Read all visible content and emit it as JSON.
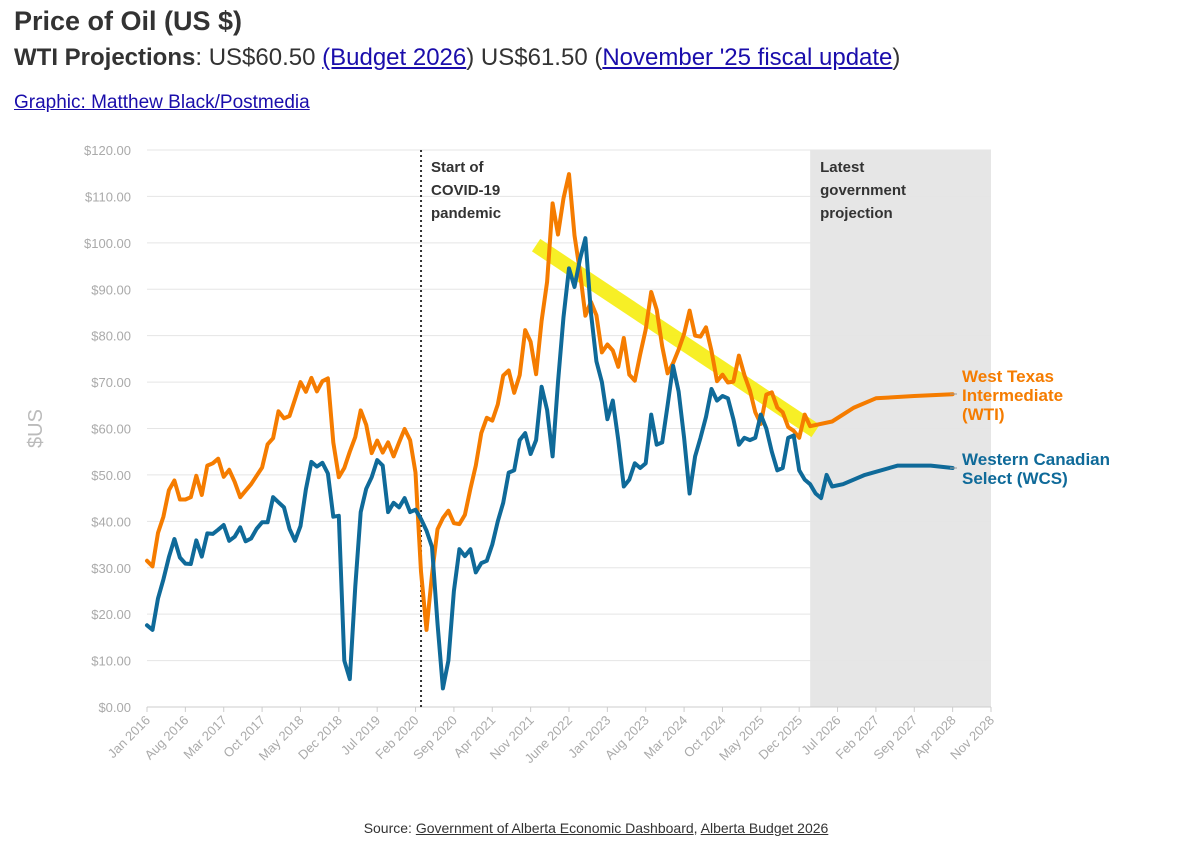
{
  "header": {
    "title": "Price of Oil (US $)",
    "subtitle_bold": "WTI Projections",
    "subtitle_sep": ": ",
    "wti_budget_value": "US$60.50 ",
    "budget_link": "(Budget 2026",
    "close_paren": ")",
    "fiscal_value": " US$61.50 (",
    "fiscal_link": "November '25 fiscal update",
    "close_paren2": ")",
    "credit_link": "Graphic: Matthew Black/Postmedia"
  },
  "source": {
    "prefix": "Source: ",
    "link1": "Government of Alberta Economic Dashboard",
    "sep": ", ",
    "link2": "Alberta Budget 2026"
  },
  "colors": {
    "wti": "#f57c00",
    "wcs": "#0f6a99",
    "highlight": "#f7ef1b",
    "projection_shade": "#e6e6e6",
    "grid": "#e5e5e5",
    "axis_text": "#aaaaaa"
  },
  "chart_data": {
    "type": "line",
    "ylabel": "$US",
    "xlabel": "",
    "ylim": [
      0,
      120
    ],
    "y_ticks": [
      "$0.00",
      "$10.00",
      "$20.00",
      "$30.00",
      "$40.00",
      "$50.00",
      "$60.00",
      "$70.00",
      "$80.00",
      "$90.00",
      "$100.00",
      "$110.00",
      "$120.00"
    ],
    "x_range": [
      "2016-01",
      "2028-11"
    ],
    "x_ticks": [
      "Jan 2016",
      "Aug 2016",
      "Mar 2017",
      "Oct 2017",
      "May 2018",
      "Dec 2018",
      "Jul 2019",
      "Feb 2020",
      "Sep 2020",
      "Apr 2021",
      "Nov 2021",
      "June 2022",
      "Jan 2023",
      "Aug 2023",
      "Mar 2024",
      "Oct 2024",
      "May 2025",
      "Dec 2025",
      "Jul 2026",
      "Feb 2027",
      "Sep 2027",
      "Apr 2028",
      "Nov 2028"
    ],
    "grid": true,
    "annotations": [
      {
        "text": [
          "Start of",
          "COVID-19",
          "pandemic"
        ],
        "x": "2020-03"
      },
      {
        "text": [
          "Latest",
          "government",
          "projection"
        ],
        "x": "2026-02"
      }
    ],
    "projection_region": [
      "2026-02",
      "2028-11"
    ],
    "series": [
      {
        "name": "West Texas Intermediate (WTI)",
        "label_lines": [
          "West Texas",
          "Intermediate",
          "(WTI)"
        ],
        "points": [
          [
            "2016-01",
            31.5
          ],
          [
            "2016-02",
            30.3
          ],
          [
            "2016-03",
            37.5
          ],
          [
            "2016-04",
            41
          ],
          [
            "2016-05",
            46.7
          ],
          [
            "2016-06",
            48.8
          ],
          [
            "2016-07",
            44.7
          ],
          [
            "2016-08",
            44.7
          ],
          [
            "2016-09",
            45.2
          ],
          [
            "2016-10",
            49.8
          ],
          [
            "2016-11",
            45.7
          ],
          [
            "2016-12",
            52
          ],
          [
            "2017-01",
            52.5
          ],
          [
            "2017-02",
            53.5
          ],
          [
            "2017-03",
            49.6
          ],
          [
            "2017-04",
            51.1
          ],
          [
            "2017-05",
            48.5
          ],
          [
            "2017-06",
            45.2
          ],
          [
            "2017-07",
            46.6
          ],
          [
            "2017-08",
            48
          ],
          [
            "2017-09",
            49.8
          ],
          [
            "2017-10",
            51.6
          ],
          [
            "2017-11",
            56.6
          ],
          [
            "2017-12",
            57.9
          ],
          [
            "2018-01",
            63.7
          ],
          [
            "2018-02",
            62.2
          ],
          [
            "2018-03",
            62.7
          ],
          [
            "2018-04",
            66.3
          ],
          [
            "2018-05",
            70
          ],
          [
            "2018-06",
            67.9
          ],
          [
            "2018-07",
            70.9
          ],
          [
            "2018-08",
            68
          ],
          [
            "2018-09",
            70.2
          ],
          [
            "2018-10",
            70.8
          ],
          [
            "2018-11",
            57
          ],
          [
            "2018-12",
            49.5
          ],
          [
            "2019-01",
            51.5
          ],
          [
            "2019-02",
            55
          ],
          [
            "2019-03",
            58.2
          ],
          [
            "2019-04",
            63.9
          ],
          [
            "2019-05",
            60.8
          ],
          [
            "2019-06",
            54.7
          ],
          [
            "2019-07",
            57.4
          ],
          [
            "2019-08",
            54.8
          ],
          [
            "2019-09",
            57
          ],
          [
            "2019-10",
            54
          ],
          [
            "2019-11",
            57
          ],
          [
            "2019-12",
            59.9
          ],
          [
            "2020-01",
            57.5
          ],
          [
            "2020-02",
            50.5
          ],
          [
            "2020-03",
            29.2
          ],
          [
            "2020-04",
            16.6
          ],
          [
            "2020-05",
            28.5
          ],
          [
            "2020-06",
            38.3
          ],
          [
            "2020-07",
            40.7
          ],
          [
            "2020-08",
            42.3
          ],
          [
            "2020-09",
            39.6
          ],
          [
            "2020-10",
            39.4
          ],
          [
            "2020-11",
            41.4
          ],
          [
            "2020-12",
            47
          ],
          [
            "2021-01",
            52
          ],
          [
            "2021-02",
            59
          ],
          [
            "2021-03",
            62.3
          ],
          [
            "2021-04",
            61.7
          ],
          [
            "2021-05",
            65.2
          ],
          [
            "2021-06",
            71.4
          ],
          [
            "2021-07",
            72.5
          ],
          [
            "2021-08",
            67.7
          ],
          [
            "2021-09",
            71.5
          ],
          [
            "2021-10",
            81.2
          ],
          [
            "2021-11",
            78.7
          ],
          [
            "2021-12",
            71.7
          ],
          [
            "2022-01",
            83.2
          ],
          [
            "2022-02",
            91.6
          ],
          [
            "2022-03",
            108.5
          ],
          [
            "2022-04",
            101.8
          ],
          [
            "2022-05",
            109.6
          ],
          [
            "2022-06",
            114.8
          ],
          [
            "2022-07",
            101.6
          ],
          [
            "2022-08",
            93.7
          ],
          [
            "2022-09",
            84.3
          ],
          [
            "2022-10",
            87.3
          ],
          [
            "2022-11",
            84.4
          ],
          [
            "2022-12",
            76.4
          ],
          [
            "2023-01",
            78.1
          ],
          [
            "2023-02",
            76.8
          ],
          [
            "2023-03",
            73.3
          ],
          [
            "2023-04",
            79.5
          ],
          [
            "2023-05",
            71.6
          ],
          [
            "2023-06",
            70.3
          ],
          [
            "2023-07",
            76
          ],
          [
            "2023-08",
            81.3
          ],
          [
            "2023-09",
            89.4
          ],
          [
            "2023-10",
            85.6
          ],
          [
            "2023-11",
            77.7
          ],
          [
            "2023-12",
            71.9
          ],
          [
            "2024-01",
            74.1
          ],
          [
            "2024-02",
            77
          ],
          [
            "2024-03",
            80.4
          ],
          [
            "2024-04",
            85.4
          ],
          [
            "2024-05",
            80
          ],
          [
            "2024-06",
            79.8
          ],
          [
            "2024-07",
            81.8
          ],
          [
            "2024-08",
            76.7
          ],
          [
            "2024-09",
            70.2
          ],
          [
            "2024-10",
            71.6
          ],
          [
            "2024-11",
            69.9
          ],
          [
            "2024-12",
            70.1
          ],
          [
            "2025-01",
            75.7
          ],
          [
            "2025-02",
            71.5
          ],
          [
            "2025-03",
            68.2
          ],
          [
            "2025-04",
            63.5
          ],
          [
            "2025-05",
            61
          ],
          [
            "2025-06",
            67.3
          ],
          [
            "2025-07",
            67.8
          ],
          [
            "2025-08",
            64.5
          ],
          [
            "2025-09",
            63.5
          ],
          [
            "2025-10",
            60.3
          ],
          [
            "2025-11",
            59.5
          ],
          [
            "2025-12",
            58
          ],
          [
            "2026-01",
            63
          ],
          [
            "2026-02",
            60.5
          ],
          [
            "2026-06",
            61.5
          ],
          [
            "2026-10",
            64.5
          ],
          [
            "2027-02",
            66.5
          ],
          [
            "2027-09",
            67
          ],
          [
            "2028-04",
            67.4
          ]
        ]
      },
      {
        "name": "Western Canadian Select (WCS)",
        "label_lines": [
          "Western Canadian",
          "Select (WCS)"
        ],
        "points": [
          [
            "2016-01",
            17.6
          ],
          [
            "2016-02",
            16.6
          ],
          [
            "2016-03",
            23.4
          ],
          [
            "2016-04",
            27.5
          ],
          [
            "2016-05",
            32.3
          ],
          [
            "2016-06",
            36.2
          ],
          [
            "2016-07",
            32.2
          ],
          [
            "2016-08",
            30.9
          ],
          [
            "2016-09",
            30.8
          ],
          [
            "2016-10",
            35.9
          ],
          [
            "2016-11",
            32.4
          ],
          [
            "2016-12",
            37.4
          ],
          [
            "2017-01",
            37.3
          ],
          [
            "2017-02",
            38.2
          ],
          [
            "2017-03",
            39.2
          ],
          [
            "2017-04",
            35.8
          ],
          [
            "2017-05",
            36.7
          ],
          [
            "2017-06",
            38.7
          ],
          [
            "2017-07",
            35.7
          ],
          [
            "2017-08",
            36.3
          ],
          [
            "2017-09",
            38.4
          ],
          [
            "2017-10",
            39.8
          ],
          [
            "2017-11",
            39.8
          ],
          [
            "2017-12",
            45.2
          ],
          [
            "2018-01",
            44.1
          ],
          [
            "2018-02",
            43
          ],
          [
            "2018-03",
            38.4
          ],
          [
            "2018-04",
            35.8
          ],
          [
            "2018-05",
            39
          ],
          [
            "2018-06",
            46.9
          ],
          [
            "2018-07",
            52.8
          ],
          [
            "2018-08",
            51.8
          ],
          [
            "2018-09",
            52.6
          ],
          [
            "2018-10",
            50.3
          ],
          [
            "2018-11",
            41
          ],
          [
            "2018-12",
            41.2
          ],
          [
            "2019-01",
            10
          ],
          [
            "2019-02",
            6
          ],
          [
            "2019-03",
            26
          ],
          [
            "2019-04",
            42
          ],
          [
            "2019-05",
            47
          ],
          [
            "2019-06",
            49.5
          ],
          [
            "2019-07",
            53.2
          ],
          [
            "2019-08",
            52
          ],
          [
            "2019-09",
            42
          ],
          [
            "2019-10",
            44
          ],
          [
            "2019-11",
            43
          ],
          [
            "2019-12",
            45
          ],
          [
            "2020-01",
            42
          ],
          [
            "2020-02",
            42.5
          ],
          [
            "2020-03",
            40.5
          ],
          [
            "2020-04",
            38
          ],
          [
            "2020-05",
            34.5
          ],
          [
            "2020-06",
            18
          ],
          [
            "2020-07",
            4
          ],
          [
            "2020-08",
            10
          ],
          [
            "2020-09",
            25
          ],
          [
            "2020-10",
            34
          ],
          [
            "2020-11",
            32.5
          ],
          [
            "2020-12",
            34
          ],
          [
            "2021-01",
            29
          ],
          [
            "2021-02",
            31
          ],
          [
            "2021-03",
            31.5
          ],
          [
            "2021-04",
            35
          ],
          [
            "2021-05",
            40
          ],
          [
            "2021-06",
            44
          ],
          [
            "2021-07",
            50.5
          ],
          [
            "2021-08",
            51
          ],
          [
            "2021-09",
            57.5
          ],
          [
            "2021-10",
            59
          ],
          [
            "2021-11",
            54.5
          ],
          [
            "2021-12",
            57.5
          ],
          [
            "2022-01",
            69
          ],
          [
            "2022-02",
            64
          ],
          [
            "2022-03",
            54
          ],
          [
            "2022-04",
            70
          ],
          [
            "2022-05",
            84
          ],
          [
            "2022-06",
            94.5
          ],
          [
            "2022-07",
            90.5
          ],
          [
            "2022-08",
            96.5
          ],
          [
            "2022-09",
            101
          ],
          [
            "2022-10",
            85
          ],
          [
            "2022-11",
            74.5
          ],
          [
            "2022-12",
            70
          ],
          [
            "2023-01",
            62
          ],
          [
            "2023-02",
            66
          ],
          [
            "2023-03",
            57.5
          ],
          [
            "2023-04",
            47.5
          ],
          [
            "2023-05",
            49
          ],
          [
            "2023-06",
            52.5
          ],
          [
            "2023-07",
            51.5
          ],
          [
            "2023-08",
            52.5
          ],
          [
            "2023-09",
            63
          ],
          [
            "2023-10",
            56.5
          ],
          [
            "2023-11",
            57
          ],
          [
            "2023-12",
            65
          ],
          [
            "2024-01",
            73.5
          ],
          [
            "2024-02",
            68
          ],
          [
            "2024-03",
            58
          ],
          [
            "2024-04",
            46
          ],
          [
            "2024-05",
            54
          ],
          [
            "2024-06",
            58
          ],
          [
            "2024-07",
            62.5
          ],
          [
            "2024-08",
            68.5
          ],
          [
            "2024-09",
            66
          ],
          [
            "2024-10",
            67
          ],
          [
            "2024-11",
            66.5
          ],
          [
            "2024-12",
            62
          ],
          [
            "2025-01",
            56.5
          ],
          [
            "2025-02",
            58
          ],
          [
            "2025-03",
            57.5
          ],
          [
            "2025-04",
            58
          ],
          [
            "2025-05",
            63
          ],
          [
            "2025-06",
            60
          ],
          [
            "2025-07",
            55
          ],
          [
            "2025-08",
            51
          ],
          [
            "2025-09",
            51.5
          ],
          [
            "2025-10",
            58
          ],
          [
            "2025-11",
            58.5
          ],
          [
            "2025-12",
            51
          ],
          [
            "2026-01",
            49
          ],
          [
            "2026-02",
            48
          ],
          [
            "2026-03",
            46
          ],
          [
            "2026-04",
            45
          ],
          [
            "2026-05",
            50
          ],
          [
            "2026-06",
            47.5
          ],
          [
            "2026-08",
            48
          ],
          [
            "2026-12",
            50
          ],
          [
            "2027-06",
            52
          ],
          [
            "2027-12",
            52
          ],
          [
            "2028-04",
            51.5
          ]
        ]
      }
    ],
    "highlight_trend": [
      [
        "2021-12",
        99.5
      ],
      [
        "2026-03",
        59.5
      ]
    ]
  }
}
